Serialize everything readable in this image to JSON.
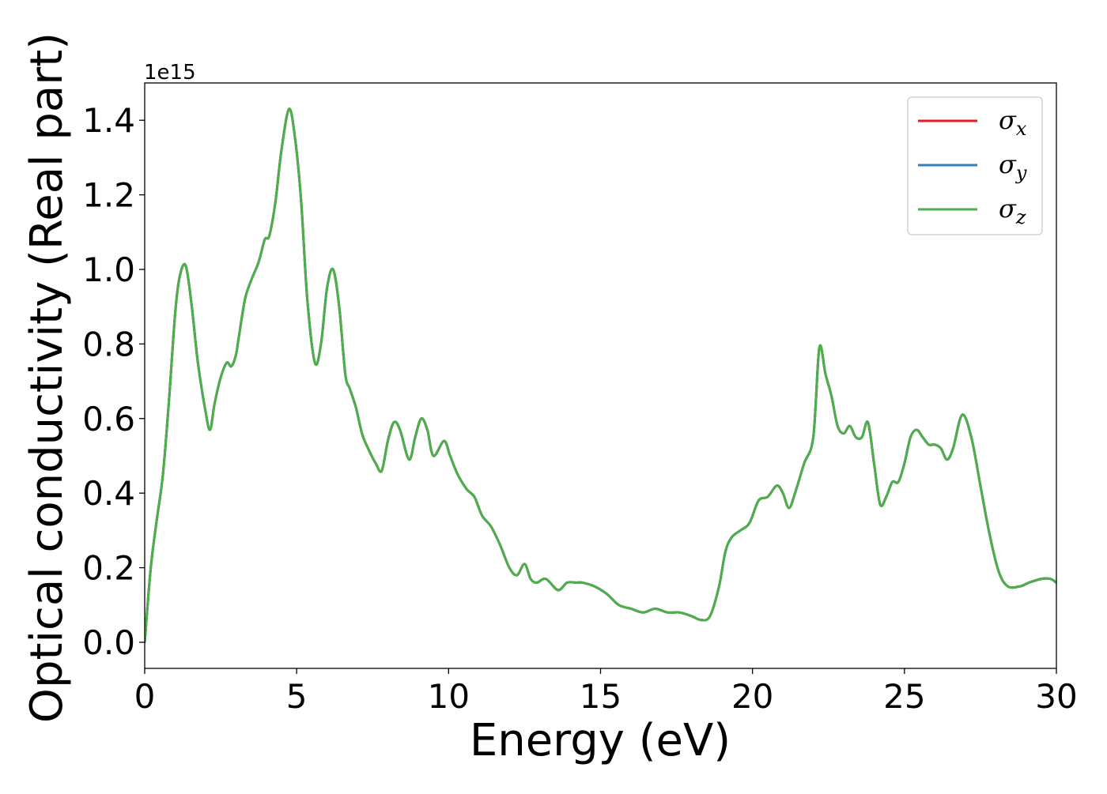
{
  "chart_data": {
    "type": "line",
    "xlabel": "Energy (eV)",
    "ylabel": "Optical conductivity (Real part)",
    "y_offset_label": "1e15",
    "xlim": [
      0,
      30
    ],
    "ylim": [
      -0.07,
      1.5
    ],
    "xticks": [
      0,
      5,
      10,
      15,
      20,
      25,
      30
    ],
    "xtick_labels": [
      "0",
      "5",
      "10",
      "15",
      "20",
      "25",
      "30"
    ],
    "yticks": [
      0.0,
      0.2,
      0.4,
      0.6,
      0.8,
      1.0,
      1.2,
      1.4
    ],
    "ytick_labels": [
      "0.0",
      "0.2",
      "0.4",
      "0.6",
      "0.8",
      "1.0",
      "1.2",
      "1.4"
    ],
    "grid": false,
    "legend_position": "top-right",
    "x": [
      0,
      0.2,
      0.4,
      0.6,
      0.8,
      1.0,
      1.15,
      1.35,
      1.55,
      1.75,
      2.0,
      2.15,
      2.3,
      2.5,
      2.7,
      2.85,
      3.0,
      3.1,
      3.3,
      3.5,
      3.75,
      3.95,
      4.1,
      4.3,
      4.5,
      4.75,
      4.95,
      5.15,
      5.35,
      5.6,
      5.8,
      6.0,
      6.2,
      6.4,
      6.6,
      6.75,
      6.95,
      7.15,
      7.35,
      7.6,
      7.8,
      8.0,
      8.2,
      8.4,
      8.7,
      8.9,
      9.1,
      9.3,
      9.5,
      9.85,
      10.05,
      10.3,
      10.6,
      10.85,
      11.1,
      11.4,
      11.7,
      12.0,
      12.25,
      12.5,
      12.7,
      12.9,
      13.2,
      13.6,
      13.9,
      14.2,
      14.4,
      14.8,
      15.2,
      15.6,
      16.0,
      16.4,
      16.8,
      17.2,
      17.6,
      18.0,
      18.3,
      18.6,
      18.9,
      19.1,
      19.3,
      19.6,
      19.9,
      20.2,
      20.5,
      20.8,
      21.0,
      21.2,
      21.4,
      21.7,
      22.0,
      22.2,
      22.4,
      22.6,
      22.8,
      23.0,
      23.2,
      23.4,
      23.6,
      23.8,
      24.0,
      24.2,
      24.4,
      24.6,
      24.8,
      25.0,
      25.2,
      25.4,
      25.6,
      25.8,
      26.0,
      26.2,
      26.4,
      26.6,
      26.9,
      27.2,
      27.5,
      27.8,
      28.1,
      28.4,
      28.8,
      29.1,
      29.5,
      29.8,
      30.0
    ],
    "series": [
      {
        "name": "σx",
        "color": "#e41a1c",
        "values": [
          0.0,
          0.2,
          0.33,
          0.45,
          0.65,
          0.88,
          0.98,
          1.01,
          0.9,
          0.75,
          0.62,
          0.57,
          0.64,
          0.71,
          0.75,
          0.74,
          0.77,
          0.82,
          0.92,
          0.97,
          1.02,
          1.08,
          1.09,
          1.18,
          1.32,
          1.43,
          1.35,
          1.18,
          0.92,
          0.75,
          0.8,
          0.95,
          1.0,
          0.9,
          0.72,
          0.68,
          0.63,
          0.56,
          0.52,
          0.48,
          0.46,
          0.54,
          0.59,
          0.57,
          0.49,
          0.55,
          0.6,
          0.57,
          0.5,
          0.54,
          0.5,
          0.45,
          0.41,
          0.39,
          0.34,
          0.31,
          0.26,
          0.2,
          0.18,
          0.21,
          0.17,
          0.16,
          0.17,
          0.14,
          0.16,
          0.16,
          0.16,
          0.15,
          0.13,
          0.1,
          0.09,
          0.08,
          0.09,
          0.08,
          0.08,
          0.07,
          0.06,
          0.07,
          0.15,
          0.24,
          0.28,
          0.3,
          0.32,
          0.38,
          0.39,
          0.42,
          0.4,
          0.36,
          0.4,
          0.48,
          0.55,
          0.79,
          0.72,
          0.66,
          0.58,
          0.56,
          0.58,
          0.55,
          0.55,
          0.59,
          0.48,
          0.37,
          0.39,
          0.43,
          0.43,
          0.48,
          0.55,
          0.57,
          0.55,
          0.53,
          0.53,
          0.52,
          0.49,
          0.52,
          0.61,
          0.55,
          0.42,
          0.29,
          0.19,
          0.15,
          0.15,
          0.16,
          0.17,
          0.17,
          0.16
        ]
      },
      {
        "name": "σy",
        "color": "#377eb8",
        "values": [
          0.0,
          0.2,
          0.33,
          0.45,
          0.65,
          0.88,
          0.98,
          1.01,
          0.9,
          0.75,
          0.62,
          0.57,
          0.64,
          0.71,
          0.75,
          0.74,
          0.77,
          0.82,
          0.92,
          0.97,
          1.02,
          1.08,
          1.09,
          1.18,
          1.32,
          1.43,
          1.35,
          1.18,
          0.92,
          0.75,
          0.8,
          0.95,
          1.0,
          0.9,
          0.72,
          0.68,
          0.63,
          0.56,
          0.52,
          0.48,
          0.46,
          0.54,
          0.59,
          0.57,
          0.49,
          0.55,
          0.6,
          0.57,
          0.5,
          0.54,
          0.5,
          0.45,
          0.41,
          0.39,
          0.34,
          0.31,
          0.26,
          0.2,
          0.18,
          0.21,
          0.17,
          0.16,
          0.17,
          0.14,
          0.16,
          0.16,
          0.16,
          0.15,
          0.13,
          0.1,
          0.09,
          0.08,
          0.09,
          0.08,
          0.08,
          0.07,
          0.06,
          0.07,
          0.15,
          0.24,
          0.28,
          0.3,
          0.32,
          0.38,
          0.39,
          0.42,
          0.4,
          0.36,
          0.4,
          0.48,
          0.55,
          0.79,
          0.72,
          0.66,
          0.58,
          0.56,
          0.58,
          0.55,
          0.55,
          0.59,
          0.48,
          0.37,
          0.39,
          0.43,
          0.43,
          0.48,
          0.55,
          0.57,
          0.55,
          0.53,
          0.53,
          0.52,
          0.49,
          0.52,
          0.61,
          0.55,
          0.42,
          0.29,
          0.19,
          0.15,
          0.15,
          0.16,
          0.17,
          0.17,
          0.16
        ]
      },
      {
        "name": "σz",
        "color": "#4daf4a",
        "values": [
          0.0,
          0.2,
          0.33,
          0.45,
          0.65,
          0.88,
          0.98,
          1.01,
          0.9,
          0.75,
          0.62,
          0.57,
          0.64,
          0.71,
          0.75,
          0.74,
          0.77,
          0.82,
          0.92,
          0.97,
          1.02,
          1.08,
          1.09,
          1.18,
          1.32,
          1.43,
          1.35,
          1.18,
          0.92,
          0.75,
          0.8,
          0.95,
          1.0,
          0.9,
          0.72,
          0.68,
          0.63,
          0.56,
          0.52,
          0.48,
          0.46,
          0.54,
          0.59,
          0.57,
          0.49,
          0.55,
          0.6,
          0.57,
          0.5,
          0.54,
          0.5,
          0.45,
          0.41,
          0.39,
          0.34,
          0.31,
          0.26,
          0.2,
          0.18,
          0.21,
          0.17,
          0.16,
          0.17,
          0.14,
          0.16,
          0.16,
          0.16,
          0.15,
          0.13,
          0.1,
          0.09,
          0.08,
          0.09,
          0.08,
          0.08,
          0.07,
          0.06,
          0.07,
          0.15,
          0.24,
          0.28,
          0.3,
          0.32,
          0.38,
          0.39,
          0.42,
          0.4,
          0.36,
          0.4,
          0.48,
          0.55,
          0.79,
          0.72,
          0.66,
          0.58,
          0.56,
          0.58,
          0.55,
          0.55,
          0.59,
          0.48,
          0.37,
          0.39,
          0.43,
          0.43,
          0.48,
          0.55,
          0.57,
          0.55,
          0.53,
          0.53,
          0.52,
          0.49,
          0.52,
          0.61,
          0.55,
          0.42,
          0.29,
          0.19,
          0.15,
          0.15,
          0.16,
          0.17,
          0.17,
          0.16
        ]
      }
    ],
    "legend": [
      {
        "symbol": "σ",
        "subscript": "x",
        "color": "#e41a1c"
      },
      {
        "symbol": "σ",
        "subscript": "y",
        "color": "#377eb8"
      },
      {
        "symbol": "σ",
        "subscript": "z",
        "color": "#4daf4a"
      }
    ]
  }
}
